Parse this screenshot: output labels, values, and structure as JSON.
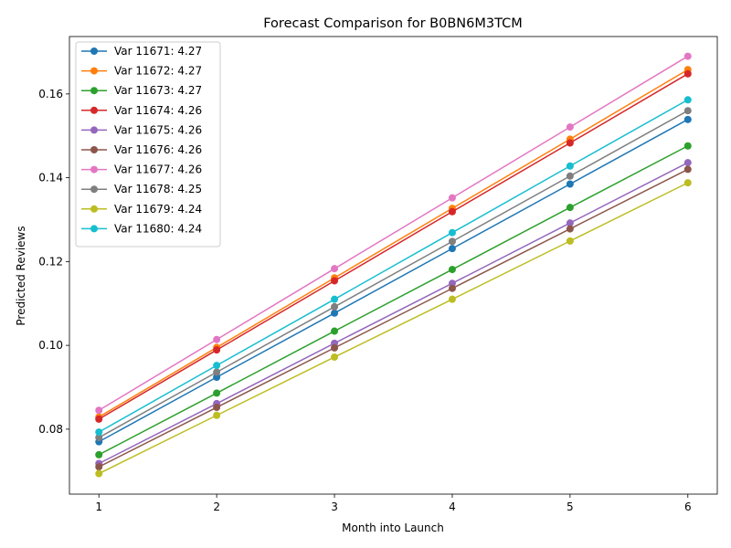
{
  "chart_data": {
    "type": "line",
    "title": "Forecast Comparison for B0BN6M3TCM",
    "xlabel": "Month into Launch",
    "ylabel": "Predicted Reviews",
    "x": [
      1,
      2,
      3,
      4,
      5,
      6
    ],
    "xlim": [
      0.75,
      6.25
    ],
    "ylim": [
      0.0645,
      0.1737
    ],
    "xticks": [
      1,
      2,
      3,
      4,
      5,
      6
    ],
    "yticks": [
      0.08,
      0.1,
      0.12,
      0.14,
      0.16
    ],
    "ytick_labels": [
      "0.08",
      "0.10",
      "0.12",
      "0.14",
      "0.16"
    ],
    "grid": false,
    "legend_position": "upper-left",
    "marker": "circle",
    "series": [
      {
        "name": "Var 11671: 4.27",
        "color": "#1f77b4",
        "values": [
          0.077,
          0.0924,
          0.1077,
          0.1231,
          0.1385,
          0.1539
        ]
      },
      {
        "name": "Var 11672: 4.27",
        "color": "#ff7f0e",
        "values": [
          0.0829,
          0.0995,
          0.1161,
          0.1327,
          0.1492,
          0.1658
        ]
      },
      {
        "name": "Var 11673: 4.27",
        "color": "#2ca02c",
        "values": [
          0.0739,
          0.0886,
          0.1034,
          0.1181,
          0.1329,
          0.1476
        ]
      },
      {
        "name": "Var 11674: 4.26",
        "color": "#d62728",
        "values": [
          0.0824,
          0.0989,
          0.1154,
          0.1319,
          0.1483,
          0.1648
        ]
      },
      {
        "name": "Var 11675: 4.26",
        "color": "#9467bd",
        "values": [
          0.0718,
          0.0861,
          0.1005,
          0.1148,
          0.1292,
          0.1436
        ]
      },
      {
        "name": "Var 11676: 4.26",
        "color": "#8c564b",
        "values": [
          0.071,
          0.0852,
          0.0994,
          0.1136,
          0.1278,
          0.142
        ]
      },
      {
        "name": "Var 11677: 4.26",
        "color": "#e377c2",
        "values": [
          0.0845,
          0.1014,
          0.1183,
          0.1352,
          0.1521,
          0.169
        ]
      },
      {
        "name": "Var 11678: 4.25",
        "color": "#7f7f7f",
        "values": [
          0.078,
          0.0936,
          0.1092,
          0.1248,
          0.1404,
          0.156
        ]
      },
      {
        "name": "Var 11679: 4.24",
        "color": "#bcbd22",
        "values": [
          0.0694,
          0.0833,
          0.0972,
          0.111,
          0.1249,
          0.1388
        ]
      },
      {
        "name": "Var 11680: 4.24",
        "color": "#17becf",
        "values": [
          0.0793,
          0.0952,
          0.111,
          0.1269,
          0.1428,
          0.1586
        ]
      }
    ]
  }
}
